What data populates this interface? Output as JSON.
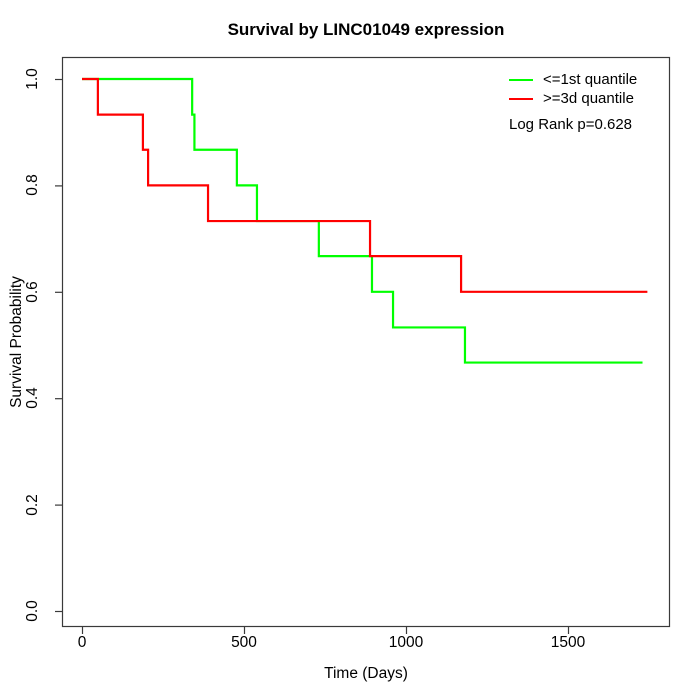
{
  "chart_data": {
    "type": "line",
    "subtype": "kaplan-meier-step",
    "title": "Survival by LINC01049 expression",
    "xlabel": "Time (Days)",
    "ylabel": "Survival Probability",
    "x_ticks": [
      0,
      500,
      1000,
      1500
    ],
    "y_ticks": [
      0.0,
      0.2,
      0.4,
      0.6,
      0.8,
      1.0
    ],
    "xlim": [
      0,
      1815
    ],
    "ylim": [
      0.0,
      1.0
    ],
    "grid": false,
    "legend_position": "top-right",
    "annotation": "Log Rank p=0.628",
    "series": [
      {
        "name": "<=1st quantile",
        "color": "#00ff00",
        "points": [
          [
            0,
            1.0
          ],
          [
            340,
            0.933
          ],
          [
            347,
            0.867
          ],
          [
            478,
            0.8
          ],
          [
            540,
            0.733
          ],
          [
            731,
            0.667
          ],
          [
            895,
            0.6
          ],
          [
            960,
            0.533
          ],
          [
            1182,
            0.467
          ]
        ],
        "end_time": 1730
      },
      {
        "name": ">=3d quantile",
        "color": "#ff0000",
        "points": [
          [
            0,
            1.0
          ],
          [
            49,
            0.933
          ],
          [
            188,
            0.867
          ],
          [
            204,
            0.8
          ],
          [
            389,
            0.733
          ],
          [
            889,
            0.667
          ],
          [
            1170,
            0.6
          ]
        ],
        "end_time": 1745
      }
    ]
  }
}
